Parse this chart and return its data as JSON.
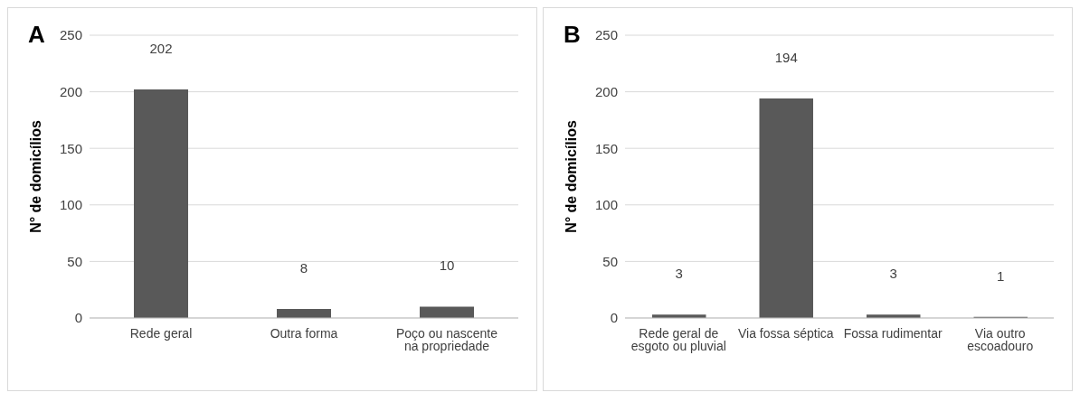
{
  "chart_data": [
    {
      "type": "bar",
      "title": "A",
      "ylabel": "N° de domicílios",
      "categories": [
        "Rede geral",
        "Outra forma",
        "Poço ou nascente na propriedade"
      ],
      "values": [
        202,
        8,
        10
      ],
      "color": "#595959",
      "ylim": [
        0,
        250
      ],
      "yticks": [
        0,
        50,
        100,
        150,
        200,
        250
      ],
      "grid": "y",
      "data_labels": true
    },
    {
      "type": "bar",
      "title": "B",
      "ylabel": "N° de domicílios",
      "categories": [
        "Rede geral de esgoto ou pluvial",
        "Via fossa séptica",
        "Fossa rudimentar",
        "Via outro escoadouro"
      ],
      "values": [
        3,
        194,
        3,
        1
      ],
      "color": "#595959",
      "ylim": [
        0,
        250
      ],
      "yticks": [
        0,
        50,
        100,
        150,
        200,
        250
      ],
      "grid": "y",
      "data_labels": true
    }
  ]
}
